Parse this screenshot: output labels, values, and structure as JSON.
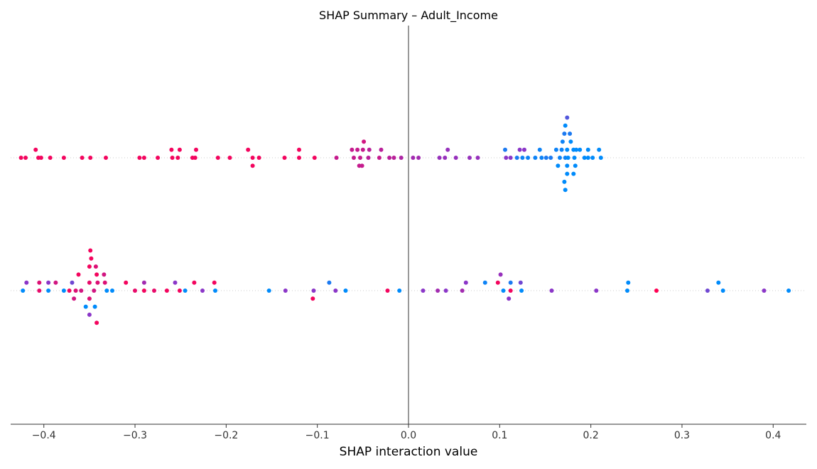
{
  "chart_data": {
    "type": "scatter",
    "title": "SHAP Summary – Adult_Income",
    "xlabel": "SHAP interaction value",
    "ylabel": "",
    "xlim": [
      -0.4364,
      0.4364
    ],
    "xticks": [
      -0.4,
      -0.3,
      -0.2,
      -0.1,
      0.0,
      0.1,
      0.2,
      0.3,
      0.4
    ],
    "xtick_labels": [
      "−0.4",
      "−0.3",
      "−0.2",
      "−0.1",
      "0.0",
      "0.1",
      "0.2",
      "0.3",
      "0.4"
    ],
    "zero_line": true,
    "grid": false,
    "legend": "none",
    "colors": {
      "low": "#008bfb",
      "mid": "#8b36c8",
      "high": "#ff0052",
      "zero_line": "#999999",
      "row_line": "#cccccc"
    },
    "series": [
      {
        "points": [
          [
            -0.423,
            0,
            0
          ],
          [
            -0.405,
            0,
            0.9
          ],
          [
            -0.395,
            0,
            0
          ],
          [
            -0.378,
            0,
            0
          ],
          [
            -0.372,
            0,
            0.95
          ],
          [
            -0.365,
            0,
            0.85
          ],
          [
            -0.359,
            0,
            0.8
          ],
          [
            -0.345,
            0,
            0.8
          ],
          [
            -0.331,
            0,
            0
          ],
          [
            -0.325,
            0,
            0
          ],
          [
            -0.3,
            0,
            0.9
          ],
          [
            -0.29,
            0,
            0.95
          ],
          [
            -0.279,
            0,
            0.9
          ],
          [
            -0.265,
            0,
            0.95
          ],
          [
            -0.251,
            0,
            0.95
          ],
          [
            -0.245,
            0,
            0
          ],
          [
            -0.226,
            0,
            0.5
          ],
          [
            -0.212,
            0,
            0
          ],
          [
            -0.153,
            0,
            0
          ],
          [
            -0.135,
            0,
            0.5
          ],
          [
            -0.104,
            0,
            0.5
          ],
          [
            -0.08,
            0,
            0.5
          ],
          [
            -0.069,
            0,
            0
          ],
          [
            -0.023,
            0,
            0.95
          ],
          [
            -0.01,
            0,
            0
          ],
          [
            0.016,
            0,
            0.5
          ],
          [
            0.032,
            0,
            0.6
          ],
          [
            0.041,
            0,
            0.5
          ],
          [
            0.059,
            0,
            0.6
          ],
          [
            0.104,
            0,
            0
          ],
          [
            0.112,
            0,
            0.95
          ],
          [
            0.124,
            0,
            0
          ],
          [
            0.157,
            0,
            0.5
          ],
          [
            0.206,
            0,
            0.5
          ],
          [
            0.24,
            0,
            0
          ],
          [
            0.272,
            0,
            1
          ],
          [
            0.328,
            0,
            0.4
          ],
          [
            0.345,
            0,
            0
          ],
          [
            0.39,
            0,
            0.5
          ],
          [
            0.417,
            0,
            0
          ],
          [
            -0.419,
            1,
            0.5
          ],
          [
            -0.395,
            1,
            0.5
          ],
          [
            -0.387,
            1,
            0.8
          ],
          [
            -0.369,
            1,
            0.4
          ],
          [
            -0.35,
            1,
            0.9
          ],
          [
            -0.333,
            1,
            0.85
          ],
          [
            -0.31,
            1,
            0.95
          ],
          [
            -0.29,
            1,
            0.6
          ],
          [
            -0.256,
            1,
            0.5
          ],
          [
            -0.235,
            1,
            0.95
          ],
          [
            -0.213,
            1,
            0.95
          ],
          [
            -0.087,
            1,
            0.1
          ],
          [
            0.063,
            1,
            0.5
          ],
          [
            0.084,
            1,
            0.05
          ],
          [
            0.098,
            1,
            0.95
          ],
          [
            0.112,
            1,
            0.1
          ],
          [
            0.123,
            1,
            0.4
          ],
          [
            0.241,
            1,
            0
          ],
          [
            0.34,
            1,
            0
          ],
          [
            -0.405,
            1,
            0.85
          ],
          [
            -0.341,
            1,
            0.85
          ],
          [
            -0.367,
            -1,
            0.8
          ],
          [
            -0.35,
            -1,
            0.85
          ],
          [
            -0.105,
            -1,
            0.95
          ],
          [
            0.11,
            -1,
            0.5
          ],
          [
            -0.362,
            2,
            0.95
          ],
          [
            -0.342,
            2,
            0.95
          ],
          [
            -0.334,
            2,
            0.8
          ],
          [
            -0.354,
            -2,
            0
          ],
          [
            -0.344,
            -2,
            0
          ],
          [
            0.101,
            2,
            0.55
          ],
          [
            -0.35,
            3,
            0.95
          ],
          [
            -0.343,
            3,
            0.85
          ],
          [
            -0.35,
            -3,
            0.5
          ],
          [
            -0.348,
            4,
            0.95
          ],
          [
            -0.342,
            -4,
            0.95
          ],
          [
            -0.349,
            5,
            0.95
          ]
        ]
      },
      {
        "points": [
          [
            -0.425,
            0,
            0.95
          ],
          [
            -0.42,
            0,
            0.95
          ],
          [
            -0.406,
            0,
            0.95
          ],
          [
            -0.403,
            0,
            0.95
          ],
          [
            -0.393,
            0,
            0.95
          ],
          [
            -0.378,
            0,
            0.95
          ],
          [
            -0.358,
            0,
            0.95
          ],
          [
            -0.349,
            0,
            0.95
          ],
          [
            -0.332,
            0,
            0.95
          ],
          [
            -0.295,
            0,
            0.95
          ],
          [
            -0.29,
            0,
            0.95
          ],
          [
            -0.275,
            0,
            0.95
          ],
          [
            -0.259,
            0,
            0.95
          ],
          [
            -0.253,
            0,
            0.95
          ],
          [
            -0.237,
            0,
            0.95
          ],
          [
            -0.234,
            0,
            0.95
          ],
          [
            -0.209,
            0,
            0.95
          ],
          [
            -0.196,
            0,
            0.95
          ],
          [
            -0.171,
            0,
            0.95
          ],
          [
            -0.164,
            0,
            0.95
          ],
          [
            -0.136,
            0,
            0.95
          ],
          [
            -0.12,
            0,
            0.95
          ],
          [
            -0.103,
            0,
            0.95
          ],
          [
            -0.079,
            0,
            0.75
          ],
          [
            -0.06,
            0,
            0.75
          ],
          [
            -0.053,
            0,
            0.75
          ],
          [
            -0.044,
            0,
            0.7
          ],
          [
            -0.032,
            0,
            0.75
          ],
          [
            -0.021,
            0,
            0.7
          ],
          [
            -0.016,
            0,
            0.7
          ],
          [
            -0.008,
            0,
            0.65
          ],
          [
            0.005,
            0,
            0.6
          ],
          [
            0.011,
            0,
            0.6
          ],
          [
            0.034,
            0,
            0.55
          ],
          [
            0.04,
            0,
            0.55
          ],
          [
            0.052,
            0,
            0.55
          ],
          [
            0.067,
            0,
            0.55
          ],
          [
            0.076,
            0,
            0.55
          ],
          [
            0.107,
            0,
            0.5
          ],
          [
            0.112,
            0,
            0.5
          ],
          [
            0.119,
            0,
            0.1
          ],
          [
            0.125,
            0,
            0.05
          ],
          [
            0.131,
            0,
            0.05
          ],
          [
            0.139,
            0,
            0.05
          ],
          [
            0.146,
            0,
            0.05
          ],
          [
            0.151,
            0,
            0.1
          ],
          [
            0.156,
            0,
            0.1
          ],
          [
            0.166,
            0,
            0.05
          ],
          [
            0.172,
            0,
            0.05
          ],
          [
            0.175,
            0,
            0
          ],
          [
            0.182,
            0,
            0
          ],
          [
            0.193,
            0,
            0
          ],
          [
            0.197,
            0,
            0
          ],
          [
            0.202,
            0,
            0
          ],
          [
            0.211,
            0,
            0
          ],
          [
            -0.409,
            1,
            0.95
          ],
          [
            -0.26,
            1,
            0.95
          ],
          [
            -0.251,
            1,
            0.95
          ],
          [
            -0.233,
            1,
            0.95
          ],
          [
            -0.176,
            1,
            0.95
          ],
          [
            -0.12,
            1,
            0.95
          ],
          [
            -0.062,
            1,
            0.75
          ],
          [
            -0.056,
            1,
            0.75
          ],
          [
            -0.05,
            1,
            0.75
          ],
          [
            -0.043,
            1,
            0.7
          ],
          [
            -0.03,
            1,
            0.7
          ],
          [
            0.043,
            1,
            0.55
          ],
          [
            0.106,
            1,
            0.1
          ],
          [
            0.122,
            1,
            0.5
          ],
          [
            0.127,
            1,
            0.5
          ],
          [
            0.144,
            1,
            0.05
          ],
          [
            0.162,
            1,
            0.05
          ],
          [
            0.168,
            1,
            0.05
          ],
          [
            0.174,
            1,
            0
          ],
          [
            0.181,
            1,
            0
          ],
          [
            0.184,
            1,
            0
          ],
          [
            0.188,
            1,
            0
          ],
          [
            0.197,
            1,
            0
          ],
          [
            0.209,
            1,
            0
          ],
          [
            -0.171,
            -1,
            0.95
          ],
          [
            -0.054,
            -1,
            0.75
          ],
          [
            -0.051,
            -1,
            0.75
          ],
          [
            0.164,
            -1,
            0
          ],
          [
            0.174,
            -1,
            0
          ],
          [
            0.183,
            -1,
            0
          ],
          [
            -0.049,
            2,
            0.8
          ],
          [
            0.169,
            2,
            0.05
          ],
          [
            0.178,
            2,
            0
          ],
          [
            0.174,
            -2,
            0
          ],
          [
            0.181,
            -2,
            0
          ],
          [
            0.171,
            3,
            0.1
          ],
          [
            0.177,
            3,
            0.1
          ],
          [
            0.171,
            -3,
            0
          ],
          [
            0.172,
            4,
            0
          ],
          [
            0.172,
            -4,
            0
          ],
          [
            0.174,
            5,
            0.3
          ]
        ]
      }
    ]
  }
}
